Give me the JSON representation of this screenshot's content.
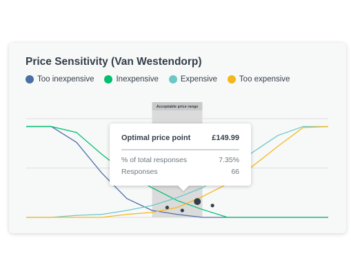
{
  "card": {
    "title": "Price Sensitivity (Van Westendorp)"
  },
  "legend": [
    {
      "label": "Too inexpensive",
      "color": "#4a6fa5"
    },
    {
      "label": "Inexpensive",
      "color": "#00bf6f"
    },
    {
      "label": "Expensive",
      "color": "#6bc8c8"
    },
    {
      "label": "Too expensive",
      "color": "#f5b81b"
    }
  ],
  "range_label": "Acceptable price range",
  "tooltip": {
    "title": "Optimal price point",
    "price": "£149.99",
    "rows": [
      {
        "label": "% of total responses",
        "value": "7.35%"
      },
      {
        "label": "Responses",
        "value": "66"
      }
    ]
  },
  "chart_data": {
    "type": "line",
    "title": "Price Sensitivity (Van Westendorp)",
    "x": [
      0,
      1,
      2,
      3,
      4,
      5,
      6,
      7,
      8,
      9,
      10,
      11,
      12
    ],
    "ylim": [
      0,
      100
    ],
    "grid": true,
    "legend_position": "top-left",
    "acceptable_range": [
      5,
      7
    ],
    "series": [
      {
        "name": "Too inexpensive",
        "color": "#4a6fa5",
        "values": [
          92,
          92,
          76,
          45,
          19,
          7,
          3,
          0,
          0,
          0,
          0,
          0,
          0
        ]
      },
      {
        "name": "Inexpensive",
        "color": "#00bf6f",
        "values": [
          92,
          92,
          86,
          64,
          44,
          30,
          17,
          8,
          0,
          0,
          0,
          0,
          0
        ]
      },
      {
        "name": "Expensive",
        "color": "#6bc8c8",
        "values": [
          0,
          0,
          2,
          3,
          7,
          12,
          20,
          30,
          46,
          66,
          83,
          92,
          92
        ]
      },
      {
        "name": "Too expensive",
        "color": "#f5b81b",
        "values": [
          0,
          0,
          0,
          0,
          3,
          5,
          10,
          21,
          34,
          52,
          72,
          91,
          92
        ]
      }
    ],
    "points": [
      {
        "x": 5.6,
        "y": 10
      },
      {
        "x": 6.2,
        "y": 7
      },
      {
        "x": 6.8,
        "y": 16
      },
      {
        "x": 7.4,
        "y": 12
      }
    ]
  }
}
